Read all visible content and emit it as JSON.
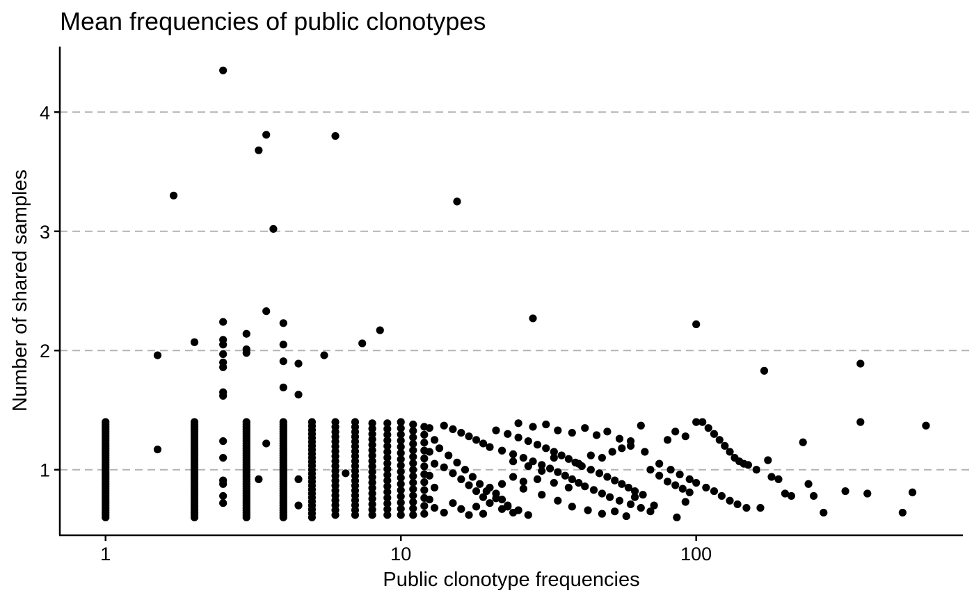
{
  "chart_data": {
    "type": "scatter",
    "title": "Mean frequencies of public clonotypes",
    "xlabel": "Public clonotype frequencies",
    "ylabel": "Number of shared samples",
    "x_scale": "log10",
    "xlim": [
      0.7,
      800
    ],
    "ylim": [
      0.45,
      4.55
    ],
    "x_ticks": [
      {
        "value": 1,
        "label": "1"
      },
      {
        "value": 10,
        "label": "10"
      },
      {
        "value": 100,
        "label": "100"
      }
    ],
    "y_ticks": [
      {
        "value": 1,
        "label": "1"
      },
      {
        "value": 2,
        "label": "2"
      },
      {
        "value": 3,
        "label": "3"
      },
      {
        "value": 4,
        "label": "4"
      }
    ],
    "grid": "horizontal dashed",
    "point_color": "#000000",
    "points": [
      [
        2.5,
        4.35
      ],
      [
        6,
        3.8
      ],
      [
        3.5,
        3.81
      ],
      [
        3.3,
        3.68
      ],
      [
        1.7,
        3.3
      ],
      [
        3.7,
        3.02
      ],
      [
        15.5,
        3.25
      ],
      [
        3.5,
        2.33
      ],
      [
        28,
        2.27
      ],
      [
        100,
        2.22
      ],
      [
        2.5,
        2.24
      ],
      [
        4,
        2.23
      ],
      [
        8.5,
        2.17
      ],
      [
        3,
        2.14
      ],
      [
        2,
        2.07
      ],
      [
        7.4,
        2.06
      ],
      [
        2.5,
        2.09
      ],
      [
        2.5,
        2.05
      ],
      [
        4,
        2.05
      ],
      [
        3,
        2.01
      ],
      [
        3,
        1.98
      ],
      [
        1.5,
        1.96
      ],
      [
        5.5,
        1.96
      ],
      [
        2.5,
        1.97
      ],
      [
        4,
        1.91
      ],
      [
        4.5,
        1.89
      ],
      [
        2.5,
        1.9
      ],
      [
        2.5,
        1.86
      ],
      [
        170,
        1.83
      ],
      [
        360,
        1.89
      ],
      [
        4,
        1.69
      ],
      [
        2.5,
        1.65
      ],
      [
        2.5,
        1.62
      ],
      [
        4.5,
        1.63
      ],
      [
        360,
        1.4
      ],
      [
        600,
        1.37
      ],
      [
        1.5,
        1.17
      ],
      [
        3.5,
        1.22
      ],
      [
        2.5,
        1.24
      ],
      [
        2.5,
        1.1
      ],
      [
        3.3,
        0.92
      ],
      [
        2.5,
        0.91
      ],
      [
        2.5,
        0.88
      ],
      [
        2.5,
        0.78
      ],
      [
        2.5,
        0.72
      ],
      [
        4.5,
        0.92
      ],
      [
        4.5,
        0.7
      ],
      [
        6.5,
        0.97
      ],
      [
        14,
        1.37
      ],
      [
        15,
        1.34
      ],
      [
        16,
        1.31
      ],
      [
        17,
        1.28
      ],
      [
        18,
        1.25
      ],
      [
        19,
        1.22
      ],
      [
        20,
        1.19
      ],
      [
        22,
        1.16
      ],
      [
        24,
        1.13
      ],
      [
        26,
        1.1
      ],
      [
        28,
        1.07
      ],
      [
        30,
        1.04
      ],
      [
        32,
        1.01
      ],
      [
        34,
        0.98
      ],
      [
        36,
        0.95
      ],
      [
        38,
        0.92
      ],
      [
        40,
        0.89
      ],
      [
        42,
        0.86
      ],
      [
        45,
        0.83
      ],
      [
        48,
        0.8
      ],
      [
        51,
        0.77
      ],
      [
        55,
        0.74
      ],
      [
        60,
        0.71
      ],
      [
        65,
        0.68
      ],
      [
        70,
        0.65
      ],
      [
        14,
        1.02
      ],
      [
        15,
        0.97
      ],
      [
        16,
        0.92
      ],
      [
        17,
        0.87
      ],
      [
        18,
        0.82
      ],
      [
        19,
        0.77
      ],
      [
        20,
        0.72
      ],
      [
        22,
        0.67
      ],
      [
        24,
        0.64
      ],
      [
        13.5,
        1.18
      ],
      [
        14.5,
        1.12
      ],
      [
        15.5,
        1.06
      ],
      [
        16.5,
        1.0
      ],
      [
        17.5,
        0.94
      ],
      [
        18.5,
        0.88
      ],
      [
        19.5,
        0.82
      ],
      [
        21,
        0.76
      ],
      [
        23,
        0.7
      ],
      [
        25,
        0.66
      ],
      [
        27,
        0.62
      ],
      [
        21,
        1.33
      ],
      [
        23,
        1.3
      ],
      [
        25,
        1.27
      ],
      [
        27,
        1.24
      ],
      [
        29,
        1.21
      ],
      [
        31,
        1.18
      ],
      [
        33,
        1.15
      ],
      [
        35,
        1.12
      ],
      [
        37,
        1.09
      ],
      [
        39,
        1.06
      ],
      [
        41,
        1.03
      ],
      [
        44,
        1.0
      ],
      [
        47,
        0.97
      ],
      [
        50,
        0.94
      ],
      [
        53,
        0.91
      ],
      [
        56,
        0.88
      ],
      [
        59,
        0.85
      ],
      [
        62,
        0.82
      ],
      [
        66,
        0.79
      ],
      [
        25,
        1.39
      ],
      [
        28,
        1.36
      ],
      [
        31,
        1.38
      ],
      [
        34,
        1.33
      ],
      [
        38,
        1.31
      ],
      [
        42,
        1.35
      ],
      [
        46,
        1.29
      ],
      [
        50,
        1.32
      ],
      [
        55,
        1.26
      ],
      [
        60,
        1.24
      ],
      [
        65,
        1.37
      ],
      [
        60,
        1.2
      ],
      [
        22,
        0.88
      ],
      [
        26,
        0.84
      ],
      [
        30,
        0.79
      ],
      [
        34,
        0.74
      ],
      [
        38,
        0.69
      ],
      [
        43,
        0.66
      ],
      [
        48,
        0.63
      ],
      [
        53,
        0.65
      ],
      [
        58,
        0.61
      ],
      [
        29,
        0.92
      ],
      [
        33,
        0.89
      ],
      [
        37,
        0.85
      ],
      [
        24,
        1.07
      ],
      [
        27,
        1.03
      ],
      [
        30,
        0.99
      ],
      [
        13,
        1.25
      ],
      [
        13,
        1.05
      ],
      [
        13,
        0.85
      ],
      [
        13,
        0.68
      ],
      [
        14,
        0.64
      ],
      [
        15,
        0.72
      ],
      [
        16,
        0.67
      ],
      [
        17,
        0.62
      ],
      [
        18,
        0.69
      ],
      [
        19,
        0.63
      ],
      [
        20,
        0.85
      ],
      [
        21,
        0.8
      ],
      [
        22,
        0.75
      ],
      [
        23,
        0.69
      ],
      [
        24,
        0.94
      ],
      [
        26,
        0.9
      ],
      [
        12.5,
        0.75
      ],
      [
        12.5,
        0.95
      ],
      [
        12.5,
        1.15
      ],
      [
        12.5,
        1.35
      ],
      [
        70,
        1.0
      ],
      [
        75,
        0.95
      ],
      [
        80,
        0.9
      ],
      [
        85,
        0.87
      ],
      [
        90,
        0.84
      ],
      [
        95,
        0.81
      ],
      [
        100,
        1.4
      ],
      [
        105,
        1.4
      ],
      [
        110,
        1.35
      ],
      [
        115,
        1.3
      ],
      [
        120,
        1.25
      ],
      [
        125,
        1.2
      ],
      [
        130,
        1.15
      ],
      [
        135,
        1.1
      ],
      [
        140,
        1.07
      ],
      [
        145,
        1.05
      ],
      [
        150,
        1.04
      ],
      [
        160,
        1.0
      ],
      [
        175,
        1.08
      ],
      [
        180,
        0.94
      ],
      [
        190,
        0.92
      ],
      [
        200,
        0.8
      ],
      [
        210,
        0.78
      ],
      [
        230,
        1.23
      ],
      [
        240,
        0.88
      ],
      [
        250,
        0.78
      ],
      [
        270,
        0.64
      ],
      [
        320,
        0.82
      ],
      [
        380,
        0.8
      ],
      [
        500,
        0.64
      ],
      [
        540,
        0.81
      ],
      [
        80,
        1.25
      ],
      [
        85,
        1.32
      ],
      [
        92,
        1.28
      ],
      [
        75,
        1.05
      ],
      [
        82,
        1.0
      ],
      [
        88,
        0.96
      ],
      [
        95,
        0.92
      ],
      [
        100,
        0.89
      ],
      [
        108,
        0.85
      ],
      [
        115,
        0.82
      ],
      [
        122,
        0.78
      ],
      [
        130,
        0.74
      ],
      [
        138,
        0.71
      ],
      [
        148,
        0.68
      ],
      [
        165,
        0.68
      ],
      [
        92,
        0.73
      ],
      [
        86,
        0.6
      ],
      [
        72,
        0.7
      ],
      [
        62,
        0.77
      ],
      [
        44,
        1.12
      ],
      [
        48,
        1.1
      ],
      [
        52,
        1.15
      ],
      [
        56,
        1.18
      ],
      [
        67,
        1.15
      ],
      [
        40,
        1.05
      ],
      [
        33,
        1.1
      ]
    ],
    "x_columns": [
      {
        "x": 1,
        "y_min": 0.6,
        "y_max": 1.4,
        "count": 41
      },
      {
        "x": 2,
        "y_min": 0.6,
        "y_max": 1.4,
        "count": 41
      },
      {
        "x": 3,
        "y_min": 0.6,
        "y_max": 1.4,
        "count": 41
      },
      {
        "x": 4,
        "y_min": 0.6,
        "y_max": 1.4,
        "count": 41
      },
      {
        "x": 5,
        "y_min": 0.6,
        "y_max": 1.4,
        "count": 25
      },
      {
        "x": 6,
        "y_min": 0.62,
        "y_max": 1.4,
        "count": 20
      },
      {
        "x": 7,
        "y_min": 0.62,
        "y_max": 1.4,
        "count": 20
      },
      {
        "x": 8,
        "y_min": 0.62,
        "y_max": 1.39,
        "count": 18
      },
      {
        "x": 9,
        "y_min": 0.62,
        "y_max": 1.39,
        "count": 17
      },
      {
        "x": 10,
        "y_min": 0.62,
        "y_max": 1.4,
        "count": 16
      },
      {
        "x": 11,
        "y_min": 0.62,
        "y_max": 1.38,
        "count": 15
      },
      {
        "x": 12,
        "y_min": 0.63,
        "y_max": 1.36,
        "count": 12
      }
    ]
  }
}
